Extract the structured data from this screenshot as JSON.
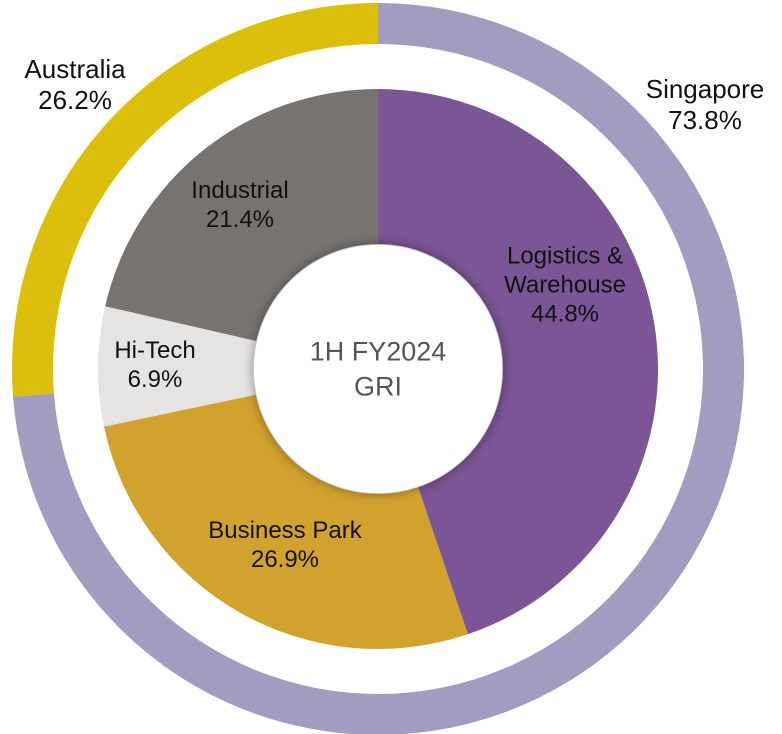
{
  "chart_data": {
    "type": "nested-donut",
    "center_text": [
      "1H FY2024",
      "GRI"
    ],
    "rings": [
      {
        "categories": [
          "Singapore",
          "Australia"
        ],
        "values": [
          73.8,
          26.2
        ],
        "value_labels": [
          "73.8%",
          "26.2%"
        ],
        "colors": [
          "#a39bc0",
          "#dcbf0a"
        ]
      },
      {
        "categories": [
          "Logistics & Warehouse",
          "Business Park",
          "Hi-Tech",
          "Industrial"
        ],
        "values": [
          44.8,
          26.9,
          6.9,
          21.4
        ],
        "value_labels": [
          "44.8%",
          "26.9%",
          "6.9%",
          "21.4%"
        ],
        "colors": [
          "#7b5595",
          "#d1a22e",
          "#e6e3e3",
          "#777370"
        ]
      }
    ]
  }
}
